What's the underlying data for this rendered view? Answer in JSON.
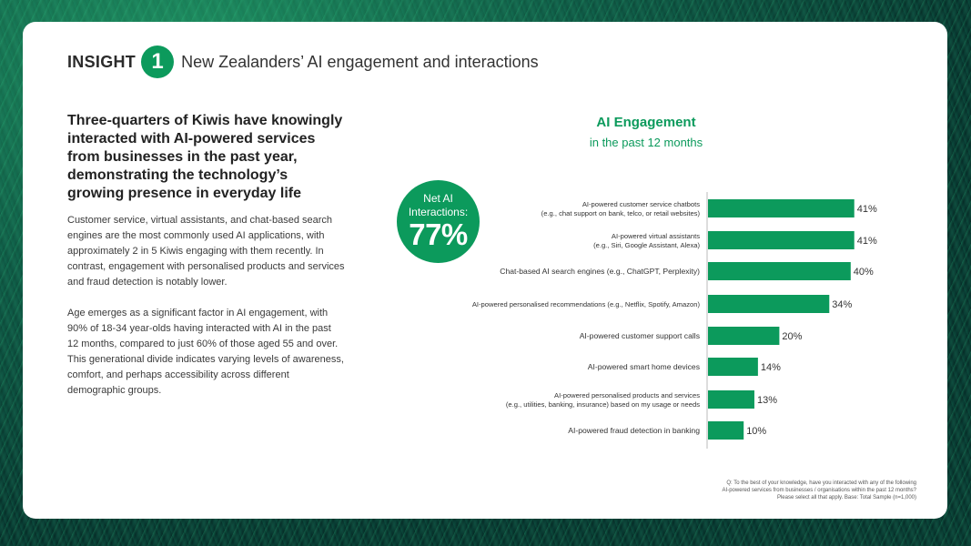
{
  "header": {
    "insight_word": "INSIGHT",
    "insight_number": "1",
    "title": "New Zealanders’ AI engagement and interactions"
  },
  "left": {
    "headline": "Three-quarters of Kiwis have knowingly interacted with AI-powered services from businesses in the past year, demonstrating the technology’s growing presence in everyday life",
    "para1": "Customer service, virtual assistants, and chat-based search engines are the most commonly used AI applications, with approximately 2 in 5 Kiwis engaging with them recently. In contrast, engagement with personalised products and services and fraud detection is notably lower.",
    "para2": "Age emerges as a significant factor in AI engagement, with 90% of 18-34 year-olds having interacted with AI in the past 12 months, compared to just 60% of those aged 55 and over. This generational divide indicates varying levels of awareness, comfort, and perhaps accessibility across different demographic groups."
  },
  "net": {
    "label_line1": "Net AI",
    "label_line2": "Interactions:",
    "value": "77%"
  },
  "footnote": {
    "line1": "Q: To the best of your knowledge, have you interacted with any of the following",
    "line2": "AI-powered services from businesses / organisations within the past 12 months?",
    "line3": "Please select all that apply.  Base: Total Sample (n=1,000)"
  },
  "colors": {
    "accent": "#0c9a5c",
    "text": "#333333"
  },
  "chart_data": {
    "type": "bar",
    "orientation": "horizontal",
    "title": "AI Engagement",
    "subtitle": "in the past 12 months",
    "categories": [
      [
        "AI-powered customer service chatbots",
        "(e.g., chat support on bank, telco, or retail websites)"
      ],
      [
        "AI-powered virtual assistants",
        "(e.g., Siri, Google Assistant, Alexa)"
      ],
      [
        "Chat-based AI search engines (e.g., ChatGPT, Perplexity)"
      ],
      [
        "AI-powered personalised recommendations (e.g., Netflix, Spotify, Amazon)"
      ],
      [
        "AI-powered customer support calls"
      ],
      [
        "AI-powered smart home devices"
      ],
      [
        "AI-powered personalised products and services",
        "(e.g., utilities, banking, insurance) based on my usage or needs"
      ],
      [
        "AI-powered fraud detection in banking"
      ]
    ],
    "values": [
      41,
      41,
      40,
      34,
      20,
      14,
      13,
      10
    ],
    "value_labels": [
      "41%",
      "41%",
      "40%",
      "34%",
      "20%",
      "14%",
      "13%",
      "10%"
    ],
    "value_suffix": "%",
    "xlim": [
      0,
      100
    ],
    "grid": false
  }
}
